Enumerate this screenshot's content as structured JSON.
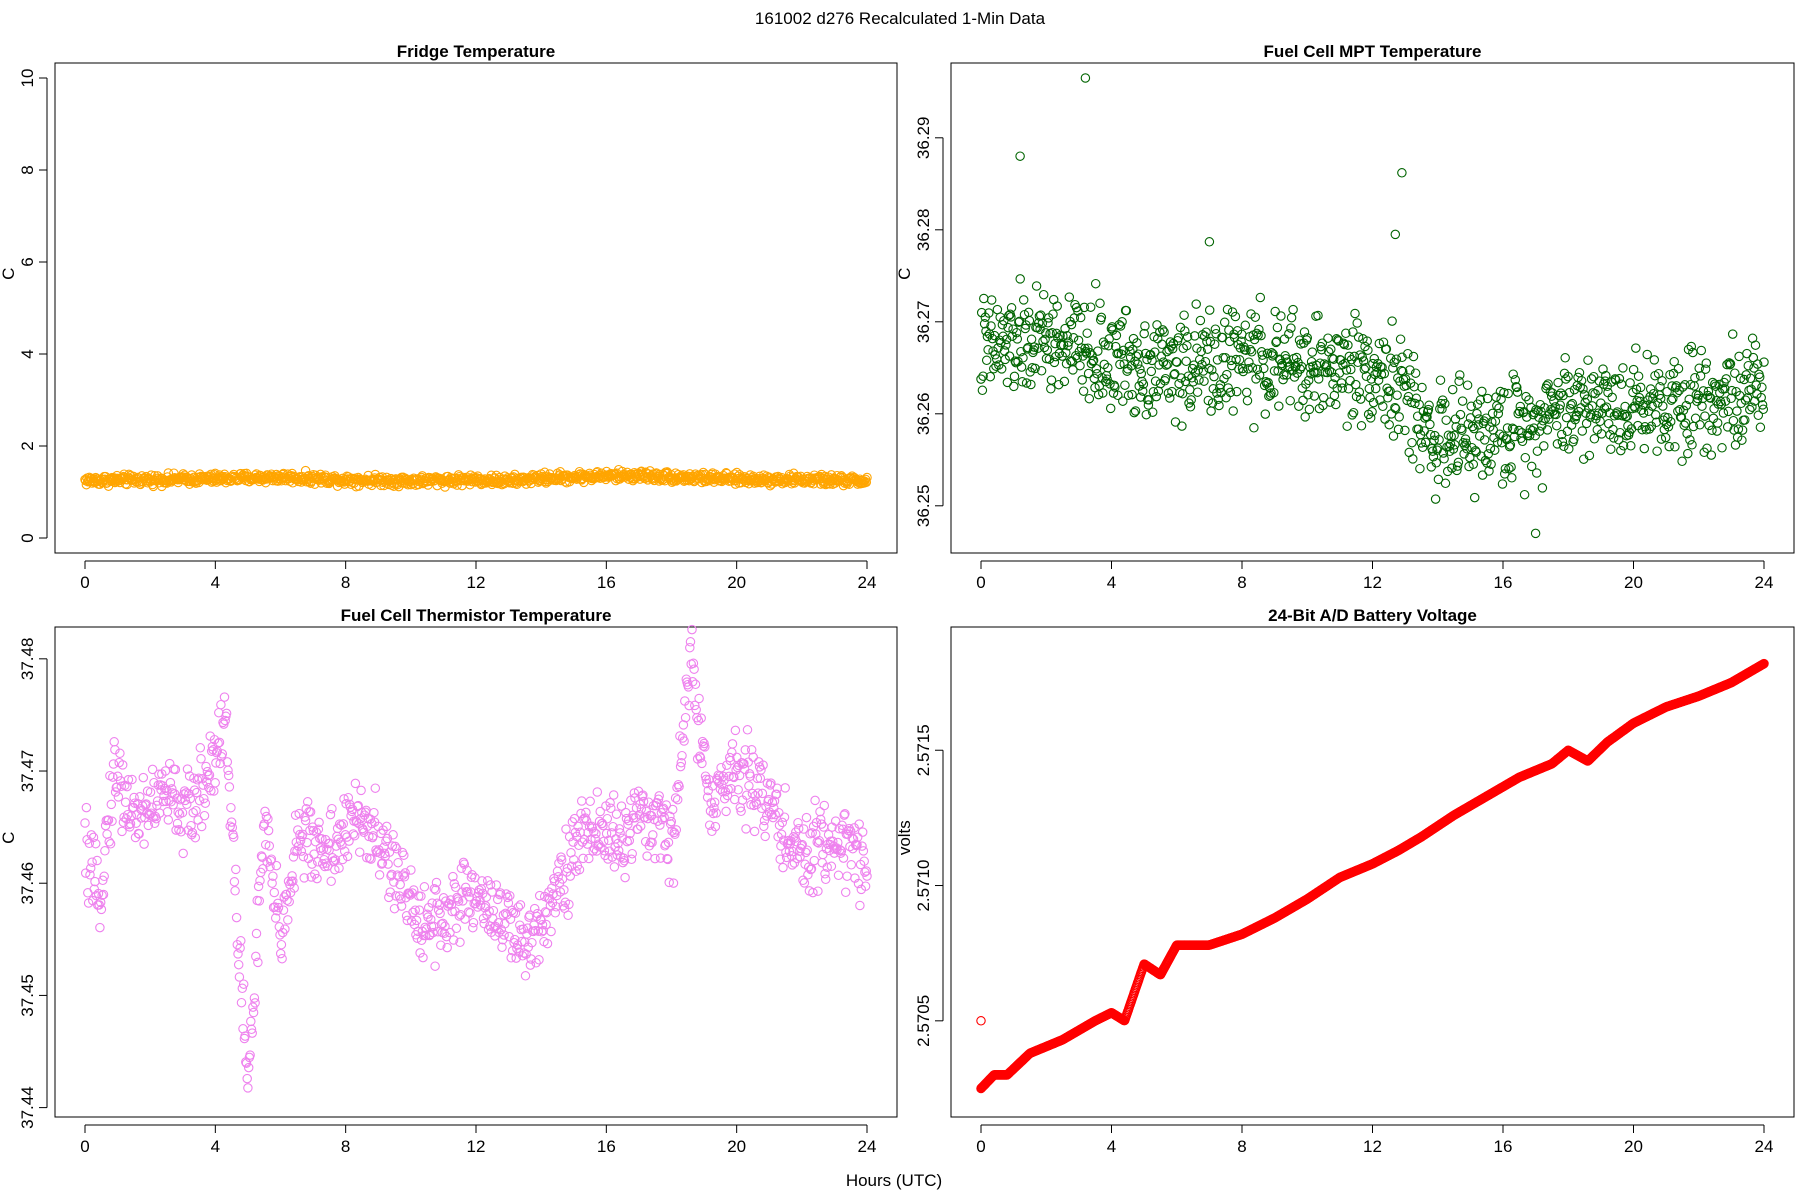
{
  "figure_title": "161002   d276   Recalculated 1-Min Data",
  "shared_xlabel": "Hours (UTC)",
  "chart_data": [
    {
      "type": "scatter",
      "title": "Fridge Temperature",
      "xlabel": "",
      "ylabel": "C",
      "xlim": [
        0,
        24
      ],
      "ylim": [
        0,
        10
      ],
      "xticks": [
        0,
        4,
        8,
        12,
        16,
        20,
        24
      ],
      "yticks": [
        0,
        2,
        4,
        6,
        8,
        10
      ],
      "color": "#ffa500",
      "trend_x": [
        0,
        2,
        4,
        6,
        8,
        10,
        12,
        13,
        14,
        16,
        17,
        18,
        20,
        22,
        24
      ],
      "trend_y": [
        1.25,
        1.27,
        1.29,
        1.32,
        1.27,
        1.24,
        1.27,
        1.24,
        1.3,
        1.35,
        1.36,
        1.33,
        1.28,
        1.27,
        1.24
      ],
      "noise": 0.08
    },
    {
      "type": "scatter",
      "title": "Fuel Cell MPT Temperature",
      "xlabel": "",
      "ylabel": "C",
      "xlim": [
        0,
        24
      ],
      "ylim": [
        36.2465,
        36.2965
      ],
      "xticks": [
        0,
        4,
        8,
        12,
        16,
        20,
        24
      ],
      "yticks": [
        36.25,
        36.26,
        36.27,
        36.28,
        36.29
      ],
      "color": "#006400",
      "trend_x": [
        0,
        2,
        4,
        6,
        8,
        10,
        12,
        13,
        14,
        16,
        18,
        20,
        22,
        24
      ],
      "trend_y": [
        36.267,
        36.268,
        36.266,
        36.265,
        36.266,
        36.265,
        36.265,
        36.262,
        36.257,
        36.258,
        36.261,
        36.261,
        36.262,
        36.262
      ],
      "noise": 0.004,
      "outliers": [
        [
          3.2,
          36.2965
        ],
        [
          1.2,
          36.288
        ],
        [
          12.9,
          36.2862
        ],
        [
          17.0,
          36.247
        ],
        [
          7.0,
          36.2787
        ],
        [
          12.7,
          36.2795
        ]
      ]
    },
    {
      "type": "scatter",
      "title": "Fuel Cell Thermistor Temperature",
      "xlabel": "",
      "ylabel": "C",
      "xlim": [
        0,
        24
      ],
      "ylim": [
        37.4405,
        37.4815
      ],
      "xticks": [
        0,
        4,
        8,
        12,
        16,
        20,
        24
      ],
      "yticks": [
        37.44,
        37.45,
        37.46,
        37.47,
        37.48
      ],
      "color": "#ee82ee",
      "trend_x": [
        0,
        0.4,
        0.9,
        1.5,
        2.5,
        3.2,
        3.8,
        4.3,
        4.6,
        5.0,
        5.5,
        6.0,
        6.5,
        7.5,
        8.5,
        9.5,
        10.2,
        11.0,
        12.0,
        12.8,
        13.5,
        14.5,
        15.5,
        16.5,
        17.5,
        18.0,
        18.6,
        19.2,
        20.0,
        21.0,
        22.0,
        23.0,
        24.0
      ],
      "trend_y": [
        37.463,
        37.458,
        37.47,
        37.466,
        37.468,
        37.466,
        37.47,
        37.475,
        37.46,
        37.442,
        37.465,
        37.455,
        37.464,
        37.463,
        37.466,
        37.461,
        37.457,
        37.457,
        37.459,
        37.457,
        37.454,
        37.46,
        37.465,
        37.464,
        37.466,
        37.463,
        37.48,
        37.466,
        37.471,
        37.467,
        37.462,
        37.464,
        37.462
      ],
      "noise": 0.0025
    },
    {
      "type": "scatter",
      "title": "24-Bit A/D Battery Voltage",
      "xlabel": "",
      "ylabel": "volts",
      "xlim": [
        0,
        24
      ],
      "ylim": [
        2.5702,
        2.5719
      ],
      "xticks": [
        0,
        4,
        8,
        12,
        16,
        20,
        24
      ],
      "yticks": [
        2.5705,
        2.571,
        2.5715
      ],
      "ytick_labels": [
        "2.5705",
        "2.5710",
        "2.5715"
      ],
      "color": "#ff0000",
      "trend_x": [
        0,
        0.4,
        0.8,
        1.5,
        2.5,
        3.5,
        4.0,
        4.4,
        5.0,
        5.5,
        6.0,
        7.0,
        8.0,
        9.0,
        10.0,
        11.0,
        12.0,
        12.8,
        13.5,
        14.5,
        15.5,
        16.5,
        17.5,
        18.0,
        18.6,
        19.2,
        20.0,
        21.0,
        22.0,
        23.0,
        24.0
      ],
      "trend_y": [
        2.57025,
        2.5703,
        2.5703,
        2.57038,
        2.57043,
        2.5705,
        2.57053,
        2.5705,
        2.57071,
        2.57067,
        2.57078,
        2.57078,
        2.57082,
        2.57088,
        2.57095,
        2.57103,
        2.57108,
        2.57113,
        2.57118,
        2.57126,
        2.57133,
        2.5714,
        2.57145,
        2.5715,
        2.57146,
        2.57153,
        2.5716,
        2.57166,
        2.5717,
        2.57175,
        2.57182
      ],
      "noise": 0.0,
      "outliers": [
        [
          0.0,
          2.5705
        ]
      ]
    }
  ]
}
